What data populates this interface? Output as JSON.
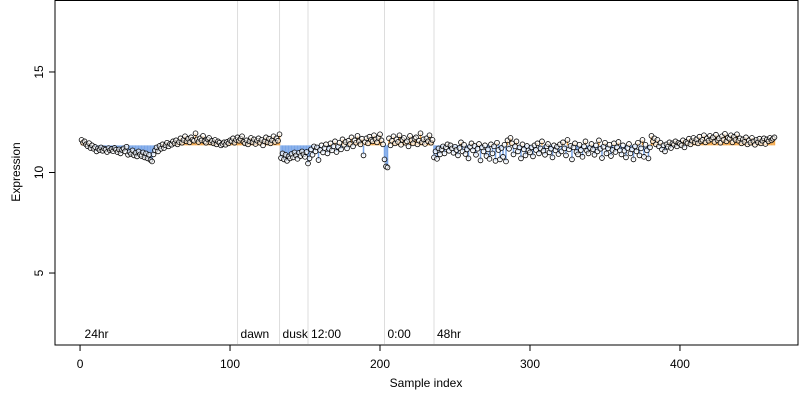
{
  "chart_data": {
    "type": "deviation-scatter",
    "x_label": "Sample index",
    "y_label": "Expression",
    "xlim": [
      -16.7,
      478.7
    ],
    "ylim": [
      1.42,
      18.58
    ],
    "xticks": [
      0,
      100,
      200,
      300,
      400
    ],
    "yticks": [
      5,
      10,
      15
    ],
    "baseline": 11.35,
    "colors": {
      "above": "#f4a84a",
      "below": "#7aa6e8",
      "point_fill": "#ffffff",
      "vline": "#dddddd",
      "annotation": "#aaaaaa"
    },
    "vlines": [
      {
        "value": 105,
        "label": "dawn"
      },
      {
        "value": 133,
        "label": "dusk"
      },
      {
        "value": 152,
        "label": "12:00"
      },
      {
        "value": 203,
        "label": "0:00"
      },
      {
        "value": 236,
        "label": "48hr"
      }
    ],
    "annotations": [
      {
        "text": "24hr",
        "x": 3
      }
    ],
    "x": [
      1,
      2,
      3,
      4,
      5,
      6,
      7,
      8,
      9,
      10,
      11,
      12,
      13,
      14,
      15,
      16,
      17,
      18,
      19,
      20,
      21,
      22,
      23,
      24,
      25,
      26,
      27,
      28,
      29,
      30,
      31,
      32,
      33,
      34,
      35,
      36,
      37,
      38,
      39,
      40,
      41,
      42,
      43,
      44,
      45,
      46,
      47,
      48,
      49,
      50,
      51,
      52,
      53,
      54,
      55,
      56,
      57,
      58,
      59,
      60,
      61,
      62,
      63,
      64,
      65,
      66,
      67,
      68,
      69,
      70,
      71,
      72,
      73,
      74,
      75,
      76,
      77,
      78,
      79,
      80,
      81,
      82,
      83,
      84,
      85,
      86,
      87,
      88,
      89,
      90,
      91,
      92,
      93,
      94,
      95,
      96,
      97,
      98,
      99,
      100,
      101,
      102,
      103,
      104,
      105,
      106,
      107,
      108,
      109,
      110,
      111,
      112,
      113,
      114,
      115,
      116,
      117,
      118,
      119,
      120,
      121,
      122,
      123,
      124,
      125,
      126,
      127,
      128,
      129,
      130,
      131,
      132,
      133,
      134,
      135,
      136,
      137,
      138,
      139,
      140,
      141,
      142,
      143,
      144,
      145,
      146,
      147,
      148,
      149,
      150,
      151,
      152,
      153,
      154,
      155,
      156,
      157,
      158,
      159,
      160,
      161,
      162,
      163,
      164,
      165,
      166,
      167,
      168,
      169,
      170,
      171,
      172,
      173,
      174,
      175,
      176,
      177,
      178,
      179,
      180,
      181,
      182,
      183,
      184,
      185,
      186,
      187,
      188,
      189,
      190,
      191,
      192,
      193,
      194,
      195,
      196,
      197,
      198,
      199,
      200,
      201,
      202,
      203,
      204,
      205,
      206,
      207,
      208,
      209,
      210,
      211,
      212,
      213,
      214,
      215,
      216,
      217,
      218,
      219,
      220,
      221,
      222,
      223,
      224,
      225,
      226,
      227,
      228,
      229,
      230,
      231,
      232,
      233,
      234,
      235,
      236,
      237,
      238,
      239,
      240,
      241,
      242,
      243,
      244,
      245,
      246,
      247,
      248,
      249,
      250,
      251,
      252,
      253,
      254,
      255,
      256,
      257,
      258,
      259,
      260,
      261,
      262,
      263,
      264,
      265,
      266,
      267,
      268,
      269,
      270,
      271,
      272,
      273,
      274,
      275,
      276,
      277,
      278,
      279,
      280,
      281,
      282,
      283,
      284,
      285,
      286,
      287,
      288,
      289,
      290,
      291,
      292,
      293,
      294,
      295,
      296,
      297,
      298,
      299,
      300,
      301,
      302,
      303,
      304,
      305,
      306,
      307,
      308,
      309,
      310,
      311,
      312,
      313,
      314,
      315,
      316,
      317,
      318,
      319,
      320,
      321,
      322,
      323,
      324,
      325,
      326,
      327,
      328,
      329,
      330,
      331,
      332,
      333,
      334,
      335,
      336,
      337,
      338,
      339,
      340,
      341,
      342,
      343,
      344,
      345,
      346,
      347,
      348,
      349,
      350,
      351,
      352,
      353,
      354,
      355,
      356,
      357,
      358,
      359,
      360,
      361,
      362,
      363,
      364,
      365,
      366,
      367,
      368,
      369,
      370,
      371,
      372,
      373,
      374,
      375,
      376,
      377,
      378,
      379,
      380,
      381,
      382,
      383,
      384,
      385,
      386,
      387,
      388,
      389,
      390,
      391,
      392,
      393,
      394,
      395,
      396,
      397,
      398,
      399,
      400,
      401,
      402,
      403,
      404,
      405,
      406,
      407,
      408,
      409,
      410,
      411,
      412,
      413,
      414,
      415,
      416,
      417,
      418,
      419,
      420,
      421,
      422,
      423,
      424,
      425,
      426,
      427,
      428,
      429,
      430,
      431,
      432,
      433,
      434,
      435,
      436,
      437,
      438,
      439,
      440,
      441,
      442,
      443,
      444,
      445,
      446,
      447,
      448,
      449,
      450,
      451,
      452,
      453,
      454,
      455,
      456,
      457,
      458,
      459,
      460,
      461,
      462,
      463
    ],
    "values": [
      11.62,
      11.48,
      11.55,
      11.4,
      11.31,
      11.46,
      11.22,
      11.35,
      11.18,
      11.27,
      11.05,
      11.2,
      11.12,
      11.25,
      11.08,
      11.19,
      11.14,
      11.02,
      11.21,
      11.1,
      11.17,
      11.06,
      11.22,
      11.13,
      11.01,
      11.15,
      10.95,
      11.12,
      11.2,
      11.05,
      11.28,
      10.88,
      11.02,
      10.92,
      11.1,
      10.85,
      10.98,
      10.8,
      11.05,
      10.9,
      10.82,
      11.0,
      10.75,
      10.95,
      10.7,
      10.88,
      10.62,
      10.55,
      10.9,
      11.1,
      11.25,
      11.05,
      11.32,
      11.18,
      11.4,
      11.22,
      11.35,
      11.48,
      11.3,
      11.42,
      11.38,
      11.55,
      11.45,
      11.6,
      11.4,
      11.52,
      11.7,
      11.48,
      11.62,
      11.8,
      11.55,
      11.68,
      11.5,
      11.75,
      11.62,
      11.58,
      11.95,
      11.65,
      11.52,
      11.7,
      11.6,
      11.82,
      11.55,
      11.48,
      11.65,
      11.72,
      11.5,
      11.58,
      11.45,
      11.62,
      11.4,
      11.55,
      11.48,
      11.35,
      11.42,
      11.5,
      11.38,
      11.52,
      11.45,
      11.6,
      11.55,
      11.7,
      11.48,
      11.62,
      11.75,
      11.58,
      11.68,
      11.8,
      11.52,
      11.45,
      11.6,
      11.4,
      11.55,
      11.72,
      11.5,
      11.65,
      11.42,
      11.58,
      11.7,
      11.48,
      11.62,
      11.35,
      11.55,
      11.75,
      11.5,
      11.68,
      11.45,
      11.6,
      11.8,
      11.52,
      11.7,
      11.58,
      11.9,
      10.72,
      10.95,
      10.65,
      10.88,
      10.58,
      10.8,
      10.7,
      10.92,
      10.75,
      11.0,
      10.85,
      10.68,
      10.98,
      10.82,
      11.05,
      10.9,
      10.78,
      11.02,
      10.45,
      10.7,
      11.15,
      10.88,
      11.3,
      11.05,
      11.25,
      10.62,
      11.12,
      11.35,
      11.0,
      11.22,
      11.4,
      10.95,
      11.18,
      11.45,
      11.1,
      11.3,
      11.55,
      11.02,
      11.28,
      11.48,
      11.15,
      11.65,
      11.38,
      11.52,
      11.2,
      11.58,
      11.42,
      11.75,
      11.3,
      11.6,
      11.48,
      11.82,
      11.55,
      11.4,
      11.68,
      10.85,
      11.52,
      11.7,
      11.45,
      11.78,
      11.62,
      11.55,
      11.85,
      11.65,
      11.5,
      11.72,
      11.9,
      11.6,
      11.4,
      10.65,
      10.3,
      10.25,
      11.7,
      11.35,
      11.58,
      11.8,
      11.45,
      11.65,
      11.52,
      11.85,
      11.38,
      11.62,
      11.72,
      11.48,
      11.55,
      11.3,
      11.82,
      11.6,
      11.45,
      11.68,
      11.75,
      11.4,
      11.58,
      11.95,
      11.5,
      11.65,
      11.42,
      11.7,
      11.55,
      11.85,
      11.48,
      11.62,
      10.75,
      11.05,
      10.68,
      11.2,
      10.9,
      11.15,
      11.3,
      10.95,
      11.25,
      11.4,
      11.08,
      11.35,
      11.2,
      10.98,
      11.28,
      11.12,
      10.85,
      11.22,
      11.5,
      11.05,
      11.38,
      10.92,
      11.15,
      10.7,
      11.28,
      11.45,
      11.1,
      11.32,
      10.88,
      11.18,
      11.42,
      10.6,
      11.25,
      11.05,
      11.35,
      10.82,
      11.15,
      10.68,
      11.4,
      10.95,
      11.3,
      10.58,
      11.48,
      11.12,
      10.65,
      11.22,
      10.78,
      11.38,
      10.55,
      11.6,
      11.18,
      11.72,
      11.45,
      10.9,
      11.3,
      11.55,
      11.05,
      11.25,
      10.7,
      11.4,
      11.15,
      10.85,
      11.32,
      11.1,
      11.0,
      11.25,
      10.8,
      11.35,
      11.12,
      11.45,
      10.95,
      11.2,
      11.55,
      11.08,
      10.88,
      11.3,
      11.42,
      11.0,
      11.18,
      10.75,
      11.35,
      11.1,
      11.28,
      10.92,
      11.4,
      11.05,
      11.5,
      11.2,
      10.85,
      11.62,
      11.15,
      11.32,
      10.65,
      11.25,
      11.45,
      11.02,
      10.9,
      11.38,
      11.12,
      10.78,
      11.3,
      11.55,
      11.08,
      10.95,
      11.22,
      11.42,
      11.15,
      10.88,
      11.35,
      11.05,
      11.6,
      11.18,
      10.72,
      11.28,
      11.48,
      10.95,
      11.2,
      11.38,
      10.82,
      11.12,
      11.45,
      11.02,
      11.25,
      11.52,
      11.1,
      10.9,
      11.35,
      11.08,
      10.75,
      11.22,
      11.42,
      10.95,
      11.15,
      10.65,
      11.3,
      11.05,
      11.48,
      10.85,
      11.2,
      11.62,
      10.78,
      11.38,
      11.1,
      10.7,
      11.25,
      11.82,
      11.55,
      11.7,
      11.4,
      11.62,
      11.3,
      11.48,
      11.15,
      11.35,
      11.05,
      11.4,
      11.28,
      11.5,
      11.22,
      11.45,
      11.38,
      11.55,
      11.3,
      11.48,
      11.42,
      11.35,
      11.6,
      11.25,
      11.52,
      11.45,
      11.68,
      11.4,
      11.58,
      11.72,
      11.5,
      11.65,
      11.45,
      11.78,
      11.55,
      11.62,
      11.85,
      11.5,
      11.7,
      11.58,
      11.82,
      11.65,
      11.75,
      11.52,
      11.88,
      11.6,
      11.7,
      11.48,
      11.8,
      11.62,
      11.92,
      11.55,
      11.72,
      11.68,
      11.85,
      11.5,
      11.78,
      11.62,
      11.9,
      11.58,
      11.7,
      11.45,
      11.65,
      11.52,
      11.75,
      11.4,
      11.6,
      11.48,
      11.72,
      11.55,
      11.38,
      11.62,
      11.5,
      11.68,
      11.45,
      11.58,
      11.7,
      11.42,
      11.65,
      11.55,
      11.72,
      11.6,
      11.68,
      11.75
    ]
  }
}
